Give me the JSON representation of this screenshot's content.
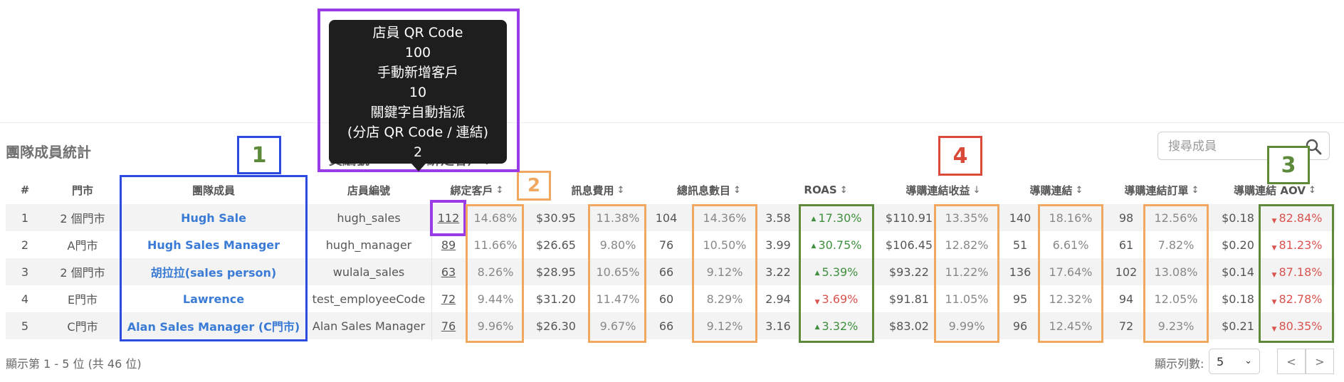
{
  "section_title": "團隊成員統計",
  "search": {
    "placeholder": "搜尋成員"
  },
  "tooltip": {
    "lines": [
      "店員 QR Code",
      "100",
      "手動新增客戶",
      "10",
      "關鍵字自動指派",
      "(分店 QR Code / 連結)",
      "2"
    ]
  },
  "ghost_headers": {
    "emp_no": "員編號",
    "bound": "綁定客戶↕"
  },
  "columns": {
    "index": "#",
    "store": "門市",
    "member": "團隊成員",
    "emp_code": "店員編號",
    "bound": "綁定客戶",
    "msg_cost": "訊息費用",
    "msg_total": "總訊息數目",
    "roas": "ROAS",
    "revenue": "導購連結收益",
    "links": "導購連結",
    "orders": "導購連結訂單",
    "aov": "導購連結 AOV"
  },
  "rows": [
    {
      "idx": "1",
      "store": "2 個門市",
      "name": "Hugh Sale",
      "code": "hugh_sales",
      "bound": "112",
      "bound_pct": "14.68%",
      "cost": "$30.95",
      "cost_pct": "11.38%",
      "msgs": "104",
      "msgs_pct": "14.36%",
      "roas": "3.58",
      "roas_pct": "17.30%",
      "roas_dir": "up",
      "rev": "$110.91",
      "rev_pct": "13.35%",
      "links": "140",
      "links_pct": "18.16%",
      "orders": "98",
      "orders_pct": "12.56%",
      "aov": "$0.18",
      "aov_pct": "82.84%",
      "aov_dir": "down"
    },
    {
      "idx": "2",
      "store": "A門市",
      "name": "Hugh Sales Manager",
      "code": "hugh_manager",
      "bound": "89",
      "bound_pct": "11.66%",
      "cost": "$26.65",
      "cost_pct": "9.80%",
      "msgs": "76",
      "msgs_pct": "10.50%",
      "roas": "3.99",
      "roas_pct": "30.75%",
      "roas_dir": "up",
      "rev": "$106.45",
      "rev_pct": "12.82%",
      "links": "51",
      "links_pct": "6.61%",
      "orders": "61",
      "orders_pct": "7.82%",
      "aov": "$0.20",
      "aov_pct": "81.23%",
      "aov_dir": "down"
    },
    {
      "idx": "3",
      "store": "2 個門市",
      "name": "胡拉拉(sales person)",
      "code": "wulala_sales",
      "bound": "63",
      "bound_pct": "8.26%",
      "cost": "$28.95",
      "cost_pct": "10.65%",
      "msgs": "66",
      "msgs_pct": "9.12%",
      "roas": "3.22",
      "roas_pct": "5.39%",
      "roas_dir": "up",
      "rev": "$93.22",
      "rev_pct": "11.22%",
      "links": "136",
      "links_pct": "17.64%",
      "orders": "102",
      "orders_pct": "13.08%",
      "aov": "$0.14",
      "aov_pct": "87.18%",
      "aov_dir": "down"
    },
    {
      "idx": "4",
      "store": "E門市",
      "name": "Lawrence",
      "code": "test_employeeCode",
      "bound": "72",
      "bound_pct": "9.44%",
      "cost": "$31.20",
      "cost_pct": "11.47%",
      "msgs": "60",
      "msgs_pct": "8.29%",
      "roas": "2.94",
      "roas_pct": "3.69%",
      "roas_dir": "down",
      "rev": "$91.81",
      "rev_pct": "11.05%",
      "links": "95",
      "links_pct": "12.32%",
      "orders": "94",
      "orders_pct": "12.05%",
      "aov": "$0.18",
      "aov_pct": "82.78%",
      "aov_dir": "down"
    },
    {
      "idx": "5",
      "store": "C門市",
      "name": "Alan Sales Manager (C門市)",
      "code": "Alan Sales Manager",
      "bound": "76",
      "bound_pct": "9.96%",
      "cost": "$26.30",
      "cost_pct": "9.67%",
      "msgs": "66",
      "msgs_pct": "9.12%",
      "roas": "3.16",
      "roas_pct": "3.32%",
      "roas_dir": "up",
      "rev": "$83.02",
      "rev_pct": "9.99%",
      "links": "96",
      "links_pct": "12.45%",
      "orders": "72",
      "orders_pct": "9.23%",
      "aov": "$0.21",
      "aov_pct": "80.35%",
      "aov_dir": "down"
    }
  ],
  "footer": {
    "showing": "顯示第 1 - 5 位 (共 46 位)",
    "rows_label": "顯示列數:",
    "rows_value": "5",
    "prev": "<",
    "next": ">"
  },
  "annotations": {
    "n1": "1",
    "n2": "2",
    "n3": "3",
    "n4": "4"
  },
  "colors": {
    "link": "#3a7bd5",
    "up": "#3f8f3f",
    "down": "#d9534f",
    "purple": "#9b3be8",
    "blue": "#2b4be0",
    "orange": "#f0a860",
    "green": "#5c8a3a",
    "red": "#d94a3a"
  }
}
